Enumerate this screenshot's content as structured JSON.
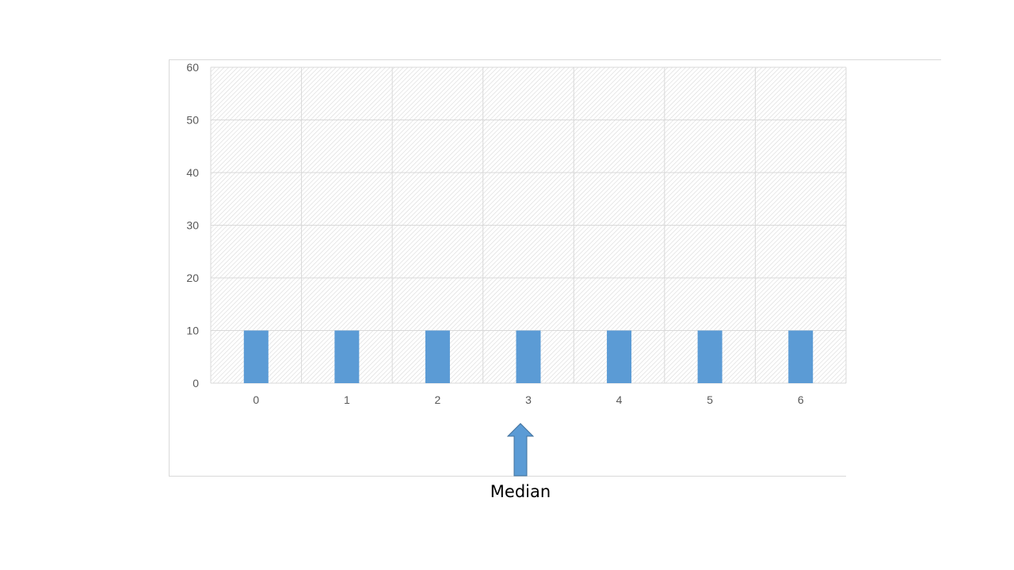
{
  "chart_data": {
    "type": "bar",
    "categories": [
      "0",
      "1",
      "2",
      "3",
      "4",
      "5",
      "6"
    ],
    "values": [
      10,
      10,
      10,
      10,
      10,
      10,
      10
    ],
    "title": "",
    "xlabel": "",
    "ylabel": "",
    "ylim": [
      0,
      60
    ],
    "yticks": [
      "0",
      "10",
      "20",
      "30",
      "40",
      "50",
      "60"
    ],
    "grid": true,
    "legend": "none",
    "bar_color": "#5B9BD5",
    "annotation": {
      "label": "Median",
      "points_to_category": "3",
      "arrow_color": "#5B9BD5"
    }
  }
}
